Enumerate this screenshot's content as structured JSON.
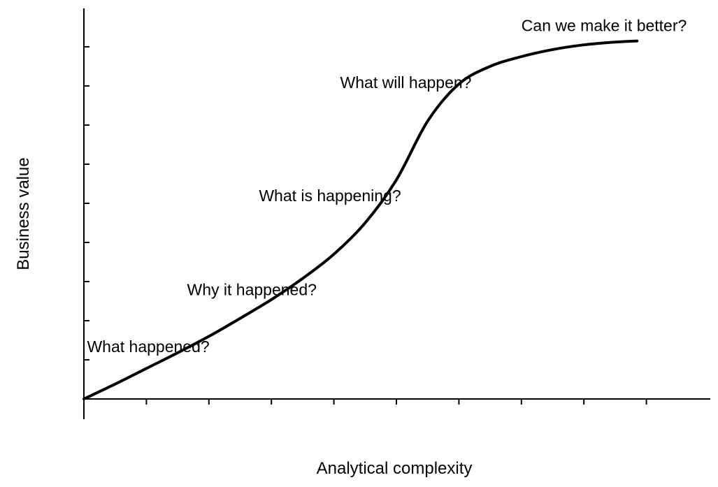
{
  "chart_data": {
    "type": "line",
    "title": "",
    "xlabel": "Analytical complexity",
    "ylabel": "Business value",
    "xlim": [
      0,
      10
    ],
    "ylim": [
      0,
      9
    ],
    "x_ticks": 9,
    "y_ticks": 9,
    "grid": false,
    "series": [
      {
        "x": [
          0,
          0.5,
          1,
          1.5,
          2,
          2.5,
          3,
          3.5,
          4,
          4.5,
          5,
          5.5,
          6,
          6.5,
          7,
          7.5,
          8,
          8.5,
          8.85
        ],
        "y": [
          0,
          0.38,
          0.78,
          1.18,
          1.6,
          2.06,
          2.54,
          3.08,
          3.7,
          4.5,
          5.6,
          7.1,
          8.05,
          8.5,
          8.75,
          8.93,
          9.05,
          9.12,
          9.15
        ]
      }
    ],
    "annotations": [
      {
        "text": "What happened?",
        "x": 0.05,
        "y": 1.2
      },
      {
        "text": "Why it happened?",
        "x": 1.65,
        "y": 2.65
      },
      {
        "text": "What is happening?",
        "x": 2.8,
        "y": 5.05
      },
      {
        "text": "What will happen?",
        "x": 4.1,
        "y": 7.95
      },
      {
        "text": "Can we make it better?",
        "x": 7.0,
        "y": 9.4
      }
    ]
  }
}
